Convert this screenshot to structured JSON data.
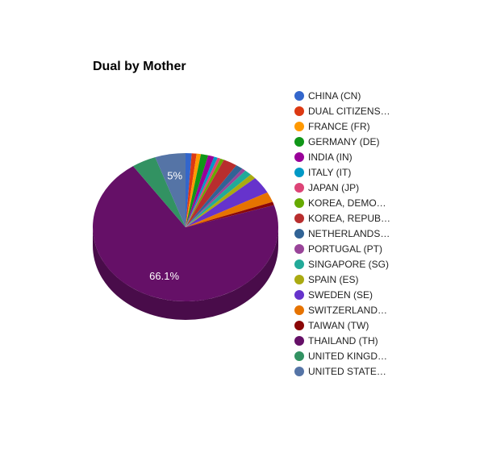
{
  "chart_data": {
    "type": "pie",
    "title": "Dual by Mother",
    "legend_position": "right",
    "three_d": true,
    "slices": [
      {
        "label": "CHINA (CN)",
        "value": 1.0,
        "color": "#3366cc"
      },
      {
        "label": "DUAL CITIZENS…",
        "value": 0.8,
        "color": "#dc3912"
      },
      {
        "label": "FRANCE (FR)",
        "value": 0.7,
        "color": "#ff9900"
      },
      {
        "label": "GERMANY (DE)",
        "value": 1.2,
        "color": "#109618"
      },
      {
        "label": "INDIA (IN)",
        "value": 1.0,
        "color": "#990099"
      },
      {
        "label": "ITALY (IT)",
        "value": 0.6,
        "color": "#0099c6"
      },
      {
        "label": "JAPAN (JP)",
        "value": 0.5,
        "color": "#dd4477"
      },
      {
        "label": "KOREA, DEMO…",
        "value": 0.6,
        "color": "#66aa00"
      },
      {
        "label": "KOREA, REPUB…",
        "value": 2.3,
        "color": "#b82e2e"
      },
      {
        "label": "NETHERLANDS…",
        "value": 1.2,
        "color": "#316395"
      },
      {
        "label": "PORTUGAL (PT)",
        "value": 0.6,
        "color": "#994499"
      },
      {
        "label": "SINGAPORE (SG)",
        "value": 1.2,
        "color": "#22aa99"
      },
      {
        "label": "SPAIN (ES)",
        "value": 1.0,
        "color": "#aaaa11"
      },
      {
        "label": "SWEDEN (SE)",
        "value": 3.5,
        "color": "#6633cc"
      },
      {
        "label": "SWITZERLAND…",
        "value": 2.1,
        "color": "#e67300"
      },
      {
        "label": "TAIWAN (TW)",
        "value": 0.7,
        "color": "#8b0707"
      },
      {
        "label": "THAILAND (TH)",
        "value": 66.1,
        "color": "#651067"
      },
      {
        "label": "UNITED KINGD…",
        "value": 4.0,
        "color": "#329262"
      },
      {
        "label": "UNITED STATE…",
        "value": 5.0,
        "color": "#5574a6"
      }
    ],
    "data_labels": [
      {
        "slice": "THAILAND (TH)",
        "text": "66.1%"
      },
      {
        "slice": "UNITED STATE…",
        "text": "5%"
      }
    ]
  }
}
